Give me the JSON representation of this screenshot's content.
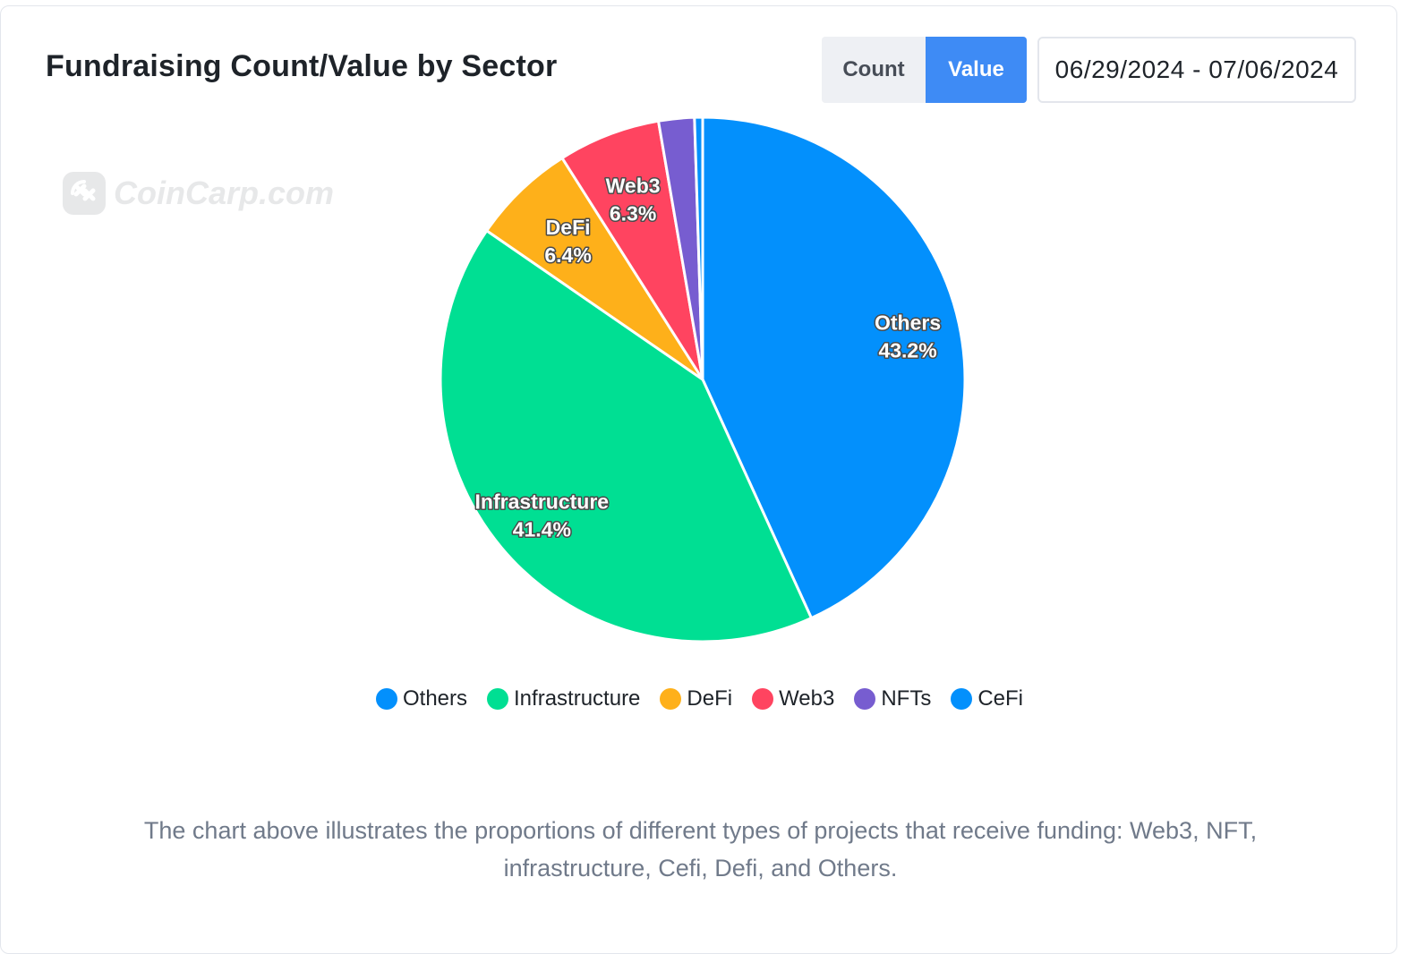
{
  "header": {
    "title": "Fundraising Count/Value by Sector",
    "toggle": {
      "count_label": "Count",
      "value_label": "Value",
      "active": "Value"
    },
    "date_range": "06/29/2024 - 07/06/2024"
  },
  "watermark": {
    "text": "CoinCarp.com"
  },
  "chart_data": {
    "type": "pie",
    "title": "",
    "slices": [
      {
        "name": "Others",
        "value": 43.2,
        "label": "43.2%",
        "color": "#0390fc",
        "show_label": true
      },
      {
        "name": "Infrastructure",
        "value": 41.4,
        "label": "41.4%",
        "color": "#00df93",
        "show_label": true
      },
      {
        "name": "DeFi",
        "value": 6.4,
        "label": "6.4%",
        "color": "#feb01a",
        "show_label": true
      },
      {
        "name": "Web3",
        "value": 6.3,
        "label": "6.3%",
        "color": "#ff4460",
        "show_label": true
      },
      {
        "name": "NFTs",
        "value": 2.2,
        "label": "",
        "color": "#775dd0",
        "show_label": false
      },
      {
        "name": "CeFi",
        "value": 0.5,
        "label": "",
        "color": "#0390fc",
        "show_label": false
      }
    ],
    "legend_position": "bottom"
  },
  "legend": [
    {
      "label": "Others",
      "color": "#0390fc"
    },
    {
      "label": "Infrastructure",
      "color": "#00df93"
    },
    {
      "label": "DeFi",
      "color": "#feb01a"
    },
    {
      "label": "Web3",
      "color": "#ff4460"
    },
    {
      "label": "NFTs",
      "color": "#775dd0"
    },
    {
      "label": "CeFi",
      "color": "#0390fc"
    }
  ],
  "caption": "The chart above illustrates the proportions of different types of projects that receive funding: Web3, NFT, infrastructure, Cefi, Defi, and Others."
}
